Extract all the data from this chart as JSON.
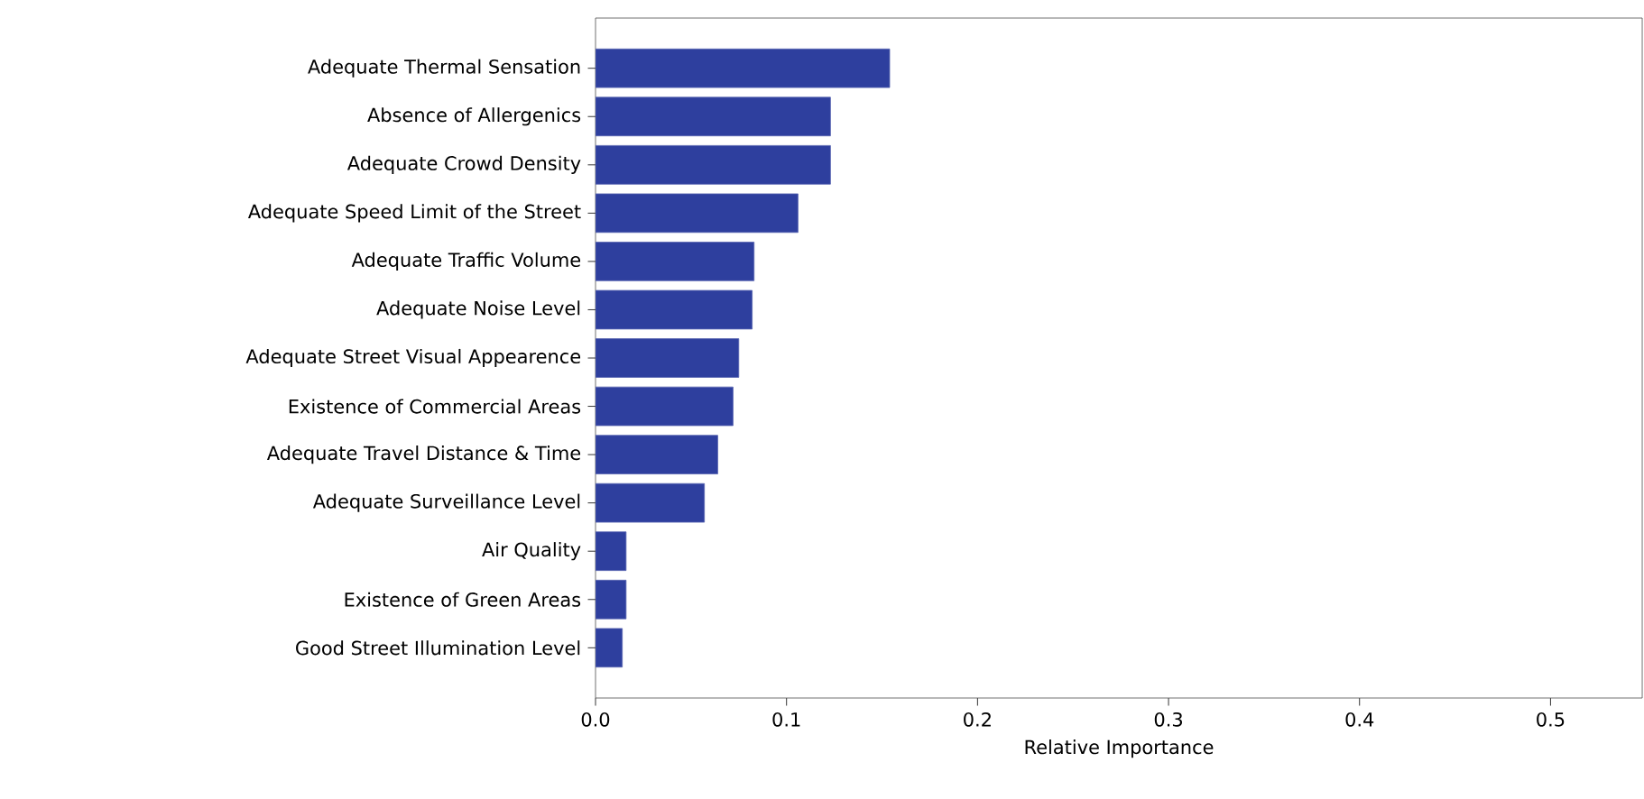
{
  "chart_data": {
    "type": "bar",
    "orientation": "horizontal",
    "xlabel": "Relative Importance",
    "categories": [
      "Adequate Thermal Sensation",
      "Absence of Allergenics",
      "Adequate Crowd Density",
      "Adequate Speed Limit of the Street",
      "Adequate Traffic Volume",
      "Adequate Noise Level",
      "Adequate Street Visual Appearence",
      "Existence of Commercial Areas",
      "Adequate Travel Distance & Time",
      "Adequate Surveillance Level",
      "Air Quality",
      "Existence of Green Areas",
      "Good Street Illumination Level"
    ],
    "values": [
      0.154,
      0.123,
      0.123,
      0.106,
      0.083,
      0.082,
      0.075,
      0.072,
      0.064,
      0.057,
      0.016,
      0.016,
      0.014
    ],
    "color": "#2e3f9e",
    "xlim": [
      0,
      0.548
    ],
    "xticks": [
      {
        "value": 0,
        "label": "0.0"
      },
      0.1,
      0.2,
      0.3,
      0.4,
      0.5
    ],
    "grid": false
  }
}
